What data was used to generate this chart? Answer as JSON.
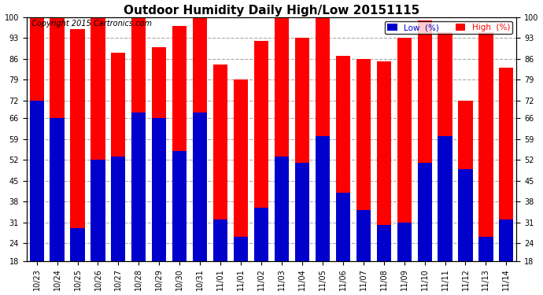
{
  "title": "Outdoor Humidity Daily High/Low 20151115",
  "copyright": "Copyright 2015 Cartronics.com",
  "legend_low_label": "Low  (%)",
  "legend_high_label": "High  (%)",
  "dates": [
    "10/23",
    "10/24",
    "10/25",
    "10/26",
    "10/27",
    "10/28",
    "10/29",
    "10/30",
    "10/31",
    "11/01",
    "11/01",
    "11/02",
    "11/03",
    "11/04",
    "11/05",
    "11/06",
    "11/07",
    "11/08",
    "11/09",
    "11/10",
    "11/11",
    "11/12",
    "11/13",
    "11/14"
  ],
  "high": [
    100,
    100,
    96,
    100,
    88,
    100,
    90,
    97,
    100,
    84,
    79,
    92,
    100,
    93,
    100,
    87,
    86,
    85,
    93,
    99,
    95,
    72,
    95,
    83
  ],
  "low": [
    72,
    66,
    29,
    52,
    53,
    68,
    66,
    55,
    68,
    32,
    26,
    36,
    53,
    51,
    60,
    41,
    35,
    30,
    31,
    51,
    60,
    49,
    26,
    32
  ],
  "ylim": [
    18,
    100
  ],
  "yticks": [
    18,
    24,
    31,
    38,
    45,
    52,
    59,
    66,
    72,
    79,
    86,
    93,
    100
  ],
  "bar_width": 0.7,
  "high_color": "#ff0000",
  "low_color": "#0000cc",
  "bg_color": "#ffffff",
  "grid_color": "#aaaaaa",
  "title_fontsize": 11,
  "copyright_fontsize": 7,
  "tick_fontsize": 7,
  "legend_fontsize": 7.5
}
